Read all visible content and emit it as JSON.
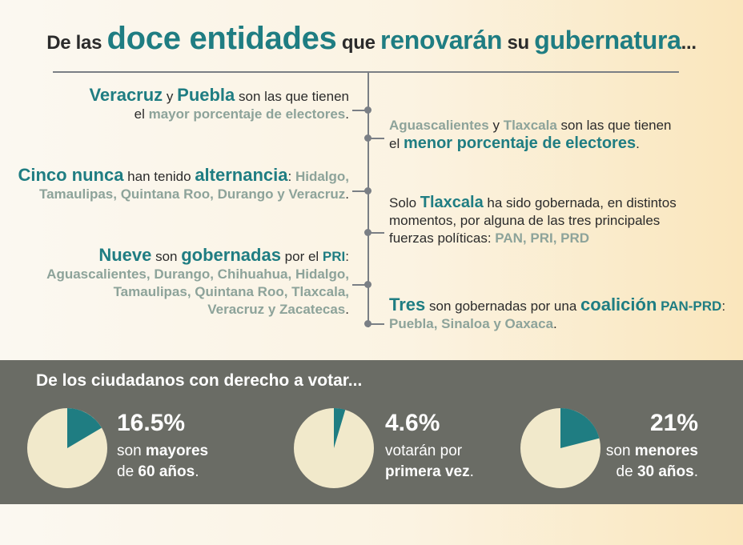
{
  "header": {
    "t1": "De las",
    "t2": "doce entidades",
    "t3": "que",
    "t4": "renovarán",
    "t5": "su",
    "t6": "gubernatura",
    "t7": "..."
  },
  "facts": {
    "f1": {
      "a": "Veracruz",
      "b": " y ",
      "c": "Puebla",
      "d": " son las que tienen",
      "e": "el ",
      "f": "mayor porcentaje de electores",
      "g": "."
    },
    "f2": {
      "a": "Aguascalientes",
      "b": " y ",
      "c": "Tlaxcala",
      "d": " son las que tienen",
      "e": "el ",
      "f": "menor porcentaje de electores",
      "g": "."
    },
    "f3": {
      "a": "Cinco nunca",
      "b": " han tenido ",
      "c": "alternancia",
      "d": ": ",
      "e": "Hidalgo,",
      "f": "Tamaulipas, Quintana Roo, Durango y Veracruz",
      "g": "."
    },
    "f4": {
      "a": "Solo ",
      "b": "Tlaxcala",
      "c": " ha sido gobernada, en distintos",
      "d": "momentos, por alguna de las tres principales",
      "e": "fuerzas políticas: ",
      "f": "PAN, PRI, PRD"
    },
    "f5": {
      "a": "Nueve",
      "b": " son ",
      "c": "gobernadas",
      "d": " por el ",
      "e": "PRI",
      "f": ":",
      "g": "Aguascalientes, Durango, Chihuahua, Hidalgo,",
      "h": "Tamaulipas, Quintana Roo, Tlaxcala,",
      "i": "Veracruz y Zacatecas",
      "j": "."
    },
    "f6": {
      "a": "Tres",
      "b": " son gobernadas por una ",
      "c": "coalición",
      "d": " ",
      "e": "PAN-PRD",
      "f": ":",
      "g": "Puebla, Sinaloa y Oaxaca",
      "h": "."
    }
  },
  "band": {
    "title": "De los ciudadanos con derecho a votar..."
  },
  "chart_data": {
    "type": "pie",
    "title": "De los ciudadanos con derecho a votar...",
    "colors": {
      "slice": "#1f7d82",
      "rest": "#f1e9cb"
    },
    "pies": [
      {
        "value": 16.5,
        "label": "16.5%",
        "cap1": "son ",
        "cap1b": "mayores",
        "cap2": "de ",
        "cap2b": "60 años",
        "cap2c": "."
      },
      {
        "value": 4.6,
        "label": "4.6%",
        "cap1": "votarán por",
        "cap2b": "primera vez",
        "cap2c": "."
      },
      {
        "value": 21,
        "label": "21%",
        "cap1": "son ",
        "cap1b": "menores",
        "cap2": "de ",
        "cap2b": "30 años",
        "cap2c": "."
      }
    ]
  }
}
